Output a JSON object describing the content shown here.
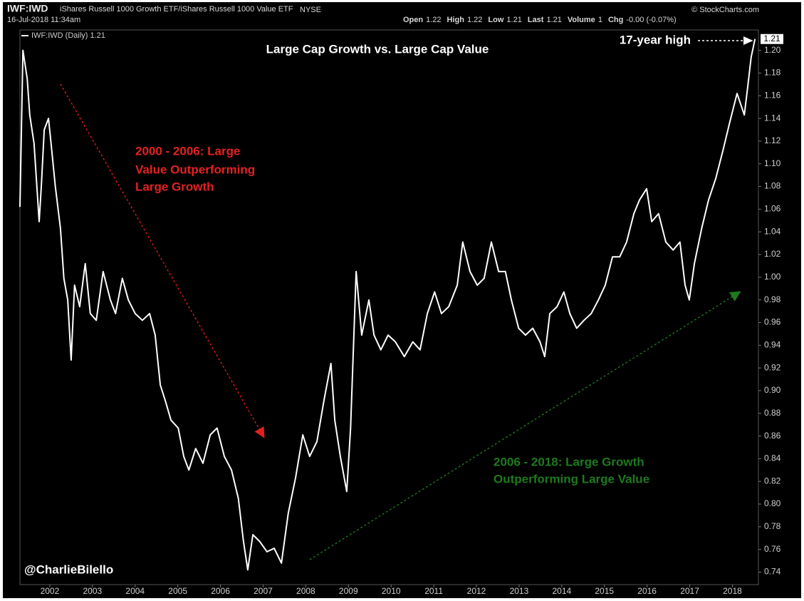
{
  "header": {
    "symbol": "IWF:IWD",
    "description": "iShares Russell 1000 Growth ETF/iShares Russell 1000 Value ETF",
    "exchange": "NYSE",
    "date": "16-Jul-2018 11:34am",
    "source": "© StockCharts.com",
    "quote": [
      {
        "label": "Open",
        "value": 1.22
      },
      {
        "label": "High",
        "value": 1.22
      },
      {
        "label": "Low",
        "value": 1.21
      },
      {
        "label": "Last",
        "value": 1.21
      },
      {
        "label": "Volume",
        "value": 1
      },
      {
        "label": "Chg",
        "value": "-0.00 (-0.07%)"
      }
    ]
  },
  "chart_data": {
    "type": "line",
    "title": "Large Cap Growth vs. Large Cap Value",
    "series": [
      {
        "name": "IWF:IWD (Daily) 1.21",
        "color": "#ffffff",
        "x": [
          2001.3,
          2001.37,
          2001.47,
          2001.53,
          2001.63,
          2001.75,
          2001.8,
          2001.87,
          2001.97,
          2002.03,
          2002.13,
          2002.25,
          2002.33,
          2002.42,
          2002.5,
          2002.58,
          2002.7,
          2002.83,
          2002.95,
          2003.09,
          2003.25,
          2003.42,
          2003.54,
          2003.7,
          2003.84,
          2004.0,
          2004.17,
          2004.34,
          2004.47,
          2004.59,
          2004.7,
          2004.84,
          2005.01,
          2005.14,
          2005.26,
          2005.42,
          2005.59,
          2005.76,
          2005.92,
          2006.09,
          2006.26,
          2006.42,
          2006.54,
          2006.64,
          2006.76,
          2006.92,
          2007.09,
          2007.26,
          2007.43,
          2007.59,
          2007.76,
          2007.93,
          2008.09,
          2008.26,
          2008.43,
          2008.59,
          2008.68,
          2008.81,
          2008.96,
          2009.05,
          2009.18,
          2009.31,
          2009.48,
          2009.6,
          2009.76,
          2009.93,
          2010.1,
          2010.31,
          2010.51,
          2010.68,
          2010.85,
          2011.02,
          2011.18,
          2011.35,
          2011.55,
          2011.68,
          2011.85,
          2012.02,
          2012.18,
          2012.35,
          2012.52,
          2012.68,
          2012.82,
          2012.99,
          2013.15,
          2013.32,
          2013.49,
          2013.6,
          2013.72,
          2013.89,
          2014.05,
          2014.19,
          2014.35,
          2014.52,
          2014.69,
          2014.86,
          2015.02,
          2015.19,
          2015.36,
          2015.52,
          2015.69,
          2015.82,
          2015.99,
          2016.11,
          2016.27,
          2016.44,
          2016.61,
          2016.77,
          2016.89,
          2016.99,
          2017.11,
          2017.28,
          2017.44,
          2017.61,
          2017.78,
          2017.94,
          2018.11,
          2018.28,
          2018.36,
          2018.44,
          2018.53
        ],
        "values": [
          1.062,
          1.2,
          1.175,
          1.143,
          1.118,
          1.049,
          1.08,
          1.13,
          1.14,
          1.118,
          1.08,
          1.043,
          0.999,
          0.98,
          0.927,
          0.993,
          0.974,
          1.012,
          0.968,
          0.962,
          1.005,
          0.98,
          0.968,
          0.999,
          0.98,
          0.968,
          0.962,
          0.968,
          0.949,
          0.905,
          0.892,
          0.874,
          0.867,
          0.842,
          0.83,
          0.849,
          0.836,
          0.861,
          0.867,
          0.842,
          0.83,
          0.805,
          0.767,
          0.742,
          0.773,
          0.767,
          0.758,
          0.761,
          0.748,
          0.792,
          0.823,
          0.861,
          0.842,
          0.855,
          0.892,
          0.924,
          0.874,
          0.842,
          0.811,
          0.867,
          1.005,
          0.949,
          0.98,
          0.949,
          0.936,
          0.949,
          0.943,
          0.93,
          0.943,
          0.936,
          0.968,
          0.987,
          0.968,
          0.974,
          0.993,
          1.031,
          1.005,
          0.993,
          0.999,
          1.031,
          1.005,
          1.005,
          0.98,
          0.955,
          0.949,
          0.955,
          0.943,
          0.93,
          0.968,
          0.974,
          0.987,
          0.968,
          0.955,
          0.962,
          0.968,
          0.98,
          0.993,
          1.018,
          1.018,
          1.031,
          1.056,
          1.068,
          1.078,
          1.049,
          1.056,
          1.031,
          1.024,
          1.031,
          0.993,
          0.98,
          1.012,
          1.043,
          1.068,
          1.087,
          1.112,
          1.137,
          1.162,
          1.143,
          1.168,
          1.194,
          1.21
        ]
      }
    ],
    "last_value": 1.21,
    "xlim": [
      2001.3,
      2018.61
    ],
    "xticks": [
      2002,
      2003,
      2004,
      2005,
      2006,
      2007,
      2008,
      2009,
      2010,
      2011,
      2012,
      2013,
      2014,
      2015,
      2016,
      2017,
      2018
    ],
    "ylim": [
      0.729,
      1.218
    ],
    "yticks": [
      0.74,
      0.76,
      0.78,
      {
        "value": 0.8,
        "label": "0.80"
      },
      0.82,
      0.84,
      0.86,
      0.88,
      {
        "value": 0.9,
        "label": "0.90"
      },
      0.92,
      0.94,
      0.96,
      0.98,
      {
        "value": 1.0,
        "label": "1.00"
      },
      1.02,
      1.04,
      1.06,
      1.08,
      {
        "value": 1.1,
        "label": "1.10"
      },
      1.12,
      1.14,
      1.16,
      1.18,
      {
        "value": 1.2,
        "label": "1.20"
      }
    ],
    "annotations": {
      "decline": [
        "2000 - 2006: Large",
        "Value Outperforming",
        "Large Growth"
      ],
      "rise": [
        "2006 - 2018: Large Growth",
        "Outperforming Large Value"
      ],
      "high": "17-year high",
      "credit": "@CharlieBilello"
    }
  }
}
